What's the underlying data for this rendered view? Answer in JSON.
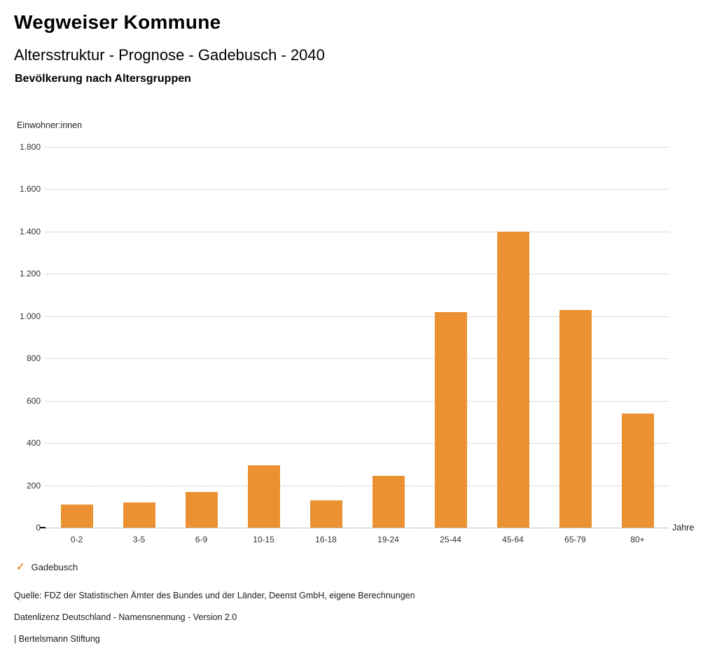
{
  "header": {
    "title": "Wegweiser Kommune",
    "subtitle": "Altersstruktur - Prognose - Gadebusch - 2040",
    "chart_title": "Bevölkerung nach Altersgruppen"
  },
  "chart_data": {
    "type": "bar",
    "title": "Bevölkerung nach Altersgruppen",
    "categories": [
      "0-2",
      "3-5",
      "6-9",
      "10-15",
      "16-18",
      "19-24",
      "25-44",
      "45-64",
      "65-79",
      "80+"
    ],
    "series": [
      {
        "name": "Gadebusch",
        "values": [
          110,
          120,
          170,
          295,
          130,
          245,
          1020,
          1400,
          1030,
          540
        ]
      }
    ],
    "xlabel": "Jahre",
    "ylabel": "Einwohner:innen",
    "ylim": [
      0,
      1800
    ],
    "ytick_step": 200,
    "grid": true,
    "legend_position": "bottom-left",
    "bar_color": "#EB9132",
    "number_format": "de-DE"
  },
  "legend": {
    "check_icon": "✓",
    "label": "Gadebusch",
    "check_color": "#EB9132"
  },
  "footer": {
    "source": "Quelle: FDZ der Statistischen Ämter des Bundes und der Länder, Deenst GmbH, eigene Berechnungen",
    "license": "Datenlizenz Deutschland - Namensnennung - Version 2.0",
    "attribution": "| Bertelsmann Stiftung"
  }
}
